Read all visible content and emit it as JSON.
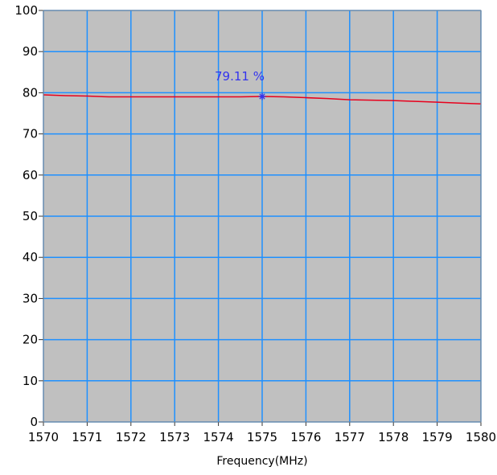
{
  "chart_data": {
    "type": "line",
    "title": "",
    "xlabel": "Frequency(MHz)",
    "ylabel": "",
    "xlim": [
      1570,
      1580
    ],
    "ylim": [
      0,
      100
    ],
    "x_ticks": [
      1570,
      1571,
      1572,
      1573,
      1574,
      1575,
      1576,
      1577,
      1578,
      1579,
      1580
    ],
    "y_ticks": [
      0,
      10,
      20,
      30,
      40,
      50,
      60,
      70,
      80,
      90,
      100
    ],
    "grid": true,
    "series": [
      {
        "color": "#e8001c",
        "x": [
          1570,
          1570.5,
          1571,
          1571.5,
          1572,
          1572.5,
          1573,
          1573.5,
          1574,
          1574.5,
          1575,
          1575.5,
          1576,
          1576.5,
          1577,
          1577.5,
          1578,
          1578.5,
          1579,
          1579.5,
          1580
        ],
        "y": [
          79.5,
          79.3,
          79.2,
          79.0,
          79.0,
          79.0,
          79.0,
          79.0,
          79.0,
          79.0,
          79.11,
          79.0,
          78.8,
          78.6,
          78.3,
          78.2,
          78.1,
          77.9,
          77.7,
          77.5,
          77.3
        ]
      }
    ],
    "marker": {
      "x": 1575,
      "y": 79.11,
      "label": "79.11 %",
      "color": "#3333ee"
    },
    "colors": {
      "plot_background": "#c0c0c0",
      "grid": "#1e90ff",
      "frame": "#888888"
    }
  }
}
